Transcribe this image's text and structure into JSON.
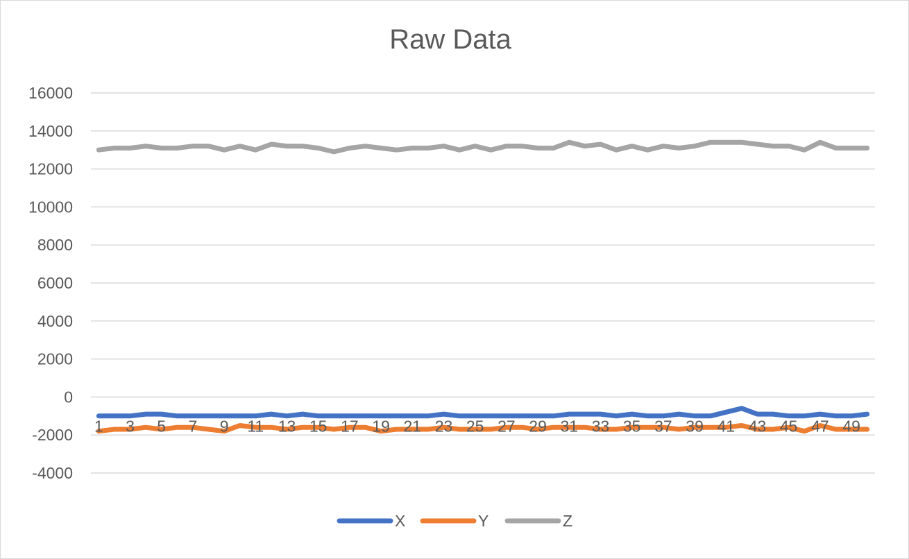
{
  "chart_data": {
    "type": "line",
    "title": "Raw Data",
    "xlabel": "",
    "ylabel": "",
    "ylim": [
      -4000,
      16000
    ],
    "yticks": [
      16000,
      14000,
      12000,
      10000,
      8000,
      6000,
      4000,
      2000,
      0,
      -2000,
      -4000
    ],
    "ytick_labels": [
      "16000",
      "14000",
      "12000",
      "10000",
      "8000",
      "6000",
      "4000",
      "2000",
      "0",
      "-2000",
      "-4000"
    ],
    "x": [
      1,
      2,
      3,
      4,
      5,
      6,
      7,
      8,
      9,
      10,
      11,
      12,
      13,
      14,
      15,
      16,
      17,
      18,
      19,
      20,
      21,
      22,
      23,
      24,
      25,
      26,
      27,
      28,
      29,
      30,
      31,
      32,
      33,
      34,
      35,
      36,
      37,
      38,
      39,
      40,
      41,
      42,
      43,
      44,
      45,
      46,
      47,
      48,
      49,
      50
    ],
    "xtick_labels": [
      "1",
      "3",
      "5",
      "7",
      "9",
      "11",
      "13",
      "15",
      "17",
      "19",
      "21",
      "23",
      "25",
      "27",
      "29",
      "31",
      "33",
      "35",
      "37",
      "39",
      "41",
      "43",
      "45",
      "47",
      "49"
    ],
    "legend": "bottom",
    "grid": true,
    "series": [
      {
        "name": "X",
        "color": "#4472C4",
        "values": [
          -1000,
          -1000,
          -1000,
          -900,
          -900,
          -1000,
          -1000,
          -1000,
          -1000,
          -1000,
          -1000,
          -900,
          -1000,
          -900,
          -1000,
          -1000,
          -1000,
          -1000,
          -1000,
          -1000,
          -1000,
          -1000,
          -900,
          -1000,
          -1000,
          -1000,
          -1000,
          -1000,
          -1000,
          -1000,
          -900,
          -900,
          -900,
          -1000,
          -900,
          -1000,
          -1000,
          -900,
          -1000,
          -1000,
          -800,
          -600,
          -900,
          -900,
          -1000,
          -1000,
          -900,
          -1000,
          -1000,
          -900
        ]
      },
      {
        "name": "Y",
        "color": "#ED7D31",
        "values": [
          -1800,
          -1700,
          -1700,
          -1600,
          -1700,
          -1600,
          -1600,
          -1700,
          -1800,
          -1500,
          -1600,
          -1600,
          -1700,
          -1600,
          -1600,
          -1700,
          -1600,
          -1600,
          -1800,
          -1700,
          -1700,
          -1700,
          -1600,
          -1700,
          -1700,
          -1700,
          -1600,
          -1600,
          -1700,
          -1600,
          -1600,
          -1600,
          -1700,
          -1700,
          -1600,
          -1600,
          -1600,
          -1700,
          -1600,
          -1600,
          -1600,
          -1500,
          -1700,
          -1700,
          -1600,
          -1800,
          -1500,
          -1700,
          -1700,
          -1700
        ]
      },
      {
        "name": "Z",
        "color": "#A5A5A5",
        "values": [
          13000,
          13100,
          13100,
          13200,
          13100,
          13100,
          13200,
          13200,
          13000,
          13200,
          13000,
          13300,
          13200,
          13200,
          13100,
          12900,
          13100,
          13200,
          13100,
          13000,
          13100,
          13100,
          13200,
          13000,
          13200,
          13000,
          13200,
          13200,
          13100,
          13100,
          13400,
          13200,
          13300,
          13000,
          13200,
          13000,
          13200,
          13100,
          13200,
          13400,
          13400,
          13400,
          13300,
          13200,
          13200,
          13000,
          13400,
          13100,
          13100,
          13100
        ]
      }
    ]
  }
}
